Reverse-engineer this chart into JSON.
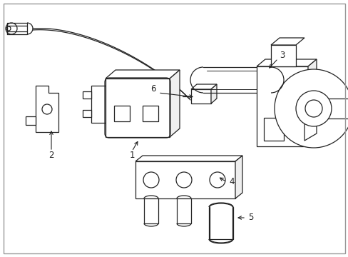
{
  "background_color": "#ffffff",
  "line_color": "#222222",
  "label_fontsize": 8.5,
  "fig_width": 4.89,
  "fig_height": 3.6,
  "dpi": 100
}
